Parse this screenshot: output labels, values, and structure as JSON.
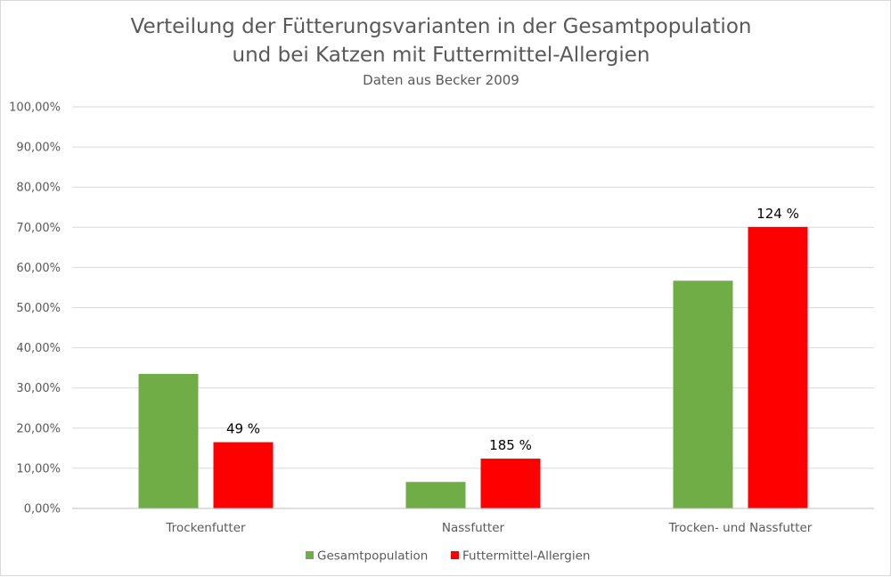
{
  "chart_data": {
    "type": "bar",
    "title": "Verteilung der Fütterungsvarianten in der Gesamtpopulation",
    "title_line2": "und bei Katzen mit Futtermittel-Allergien",
    "subtitle": "Daten aus Becker 2009",
    "xlabel": "",
    "ylabel": "",
    "ylim": [
      0,
      100
    ],
    "y_ticks": [
      "0,00%",
      "10,00%",
      "20,00%",
      "30,00%",
      "40,00%",
      "50,00%",
      "60,00%",
      "70,00%",
      "80,00%",
      "90,00%",
      "100,00%"
    ],
    "y_tick_values": [
      0,
      10,
      20,
      30,
      40,
      50,
      60,
      70,
      80,
      90,
      100
    ],
    "grid": true,
    "legend_position": "bottom",
    "categories": [
      "Trockenfutter",
      "Nassfutter",
      "Trocken- und Nassfutter"
    ],
    "series": [
      {
        "name": "Gesamtpopulation",
        "color": "#70ad47",
        "values": [
          33.5,
          6.6,
          56.7
        ],
        "data_labels": [
          "",
          "",
          ""
        ]
      },
      {
        "name": "Futtermittel-Allergien",
        "color": "#ff0000",
        "values": [
          16.5,
          12.4,
          70.1
        ],
        "data_labels": [
          "49 %",
          "185 %",
          "124 %"
        ]
      }
    ]
  }
}
